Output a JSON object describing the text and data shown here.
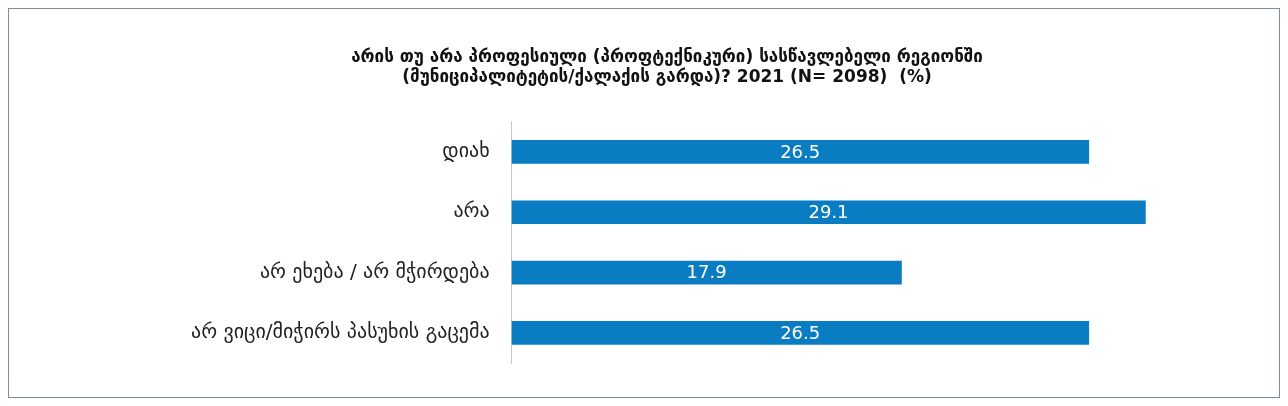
{
  "chart_data": {
    "type": "bar",
    "orientation": "horizontal",
    "title": "არის თუ არა პროფესიული (პროფტექნიკური) სასწავლებელი რეგიონში\n(მუნიციპალიტეტის/ქალაქის გარდა)? 2021 (N= 2098)  (%)",
    "categories": [
      "დიახ",
      "არა",
      "არ ეხება / არ მჭირდება",
      "არ ვიცი/მიჭირს პასუხის გაცემა"
    ],
    "values": [
      26.5,
      29.1,
      17.9,
      26.5
    ],
    "color": "#0a7dc2",
    "tick_labels": "y",
    "grid": false,
    "legend": false,
    "data_labels": true
  }
}
